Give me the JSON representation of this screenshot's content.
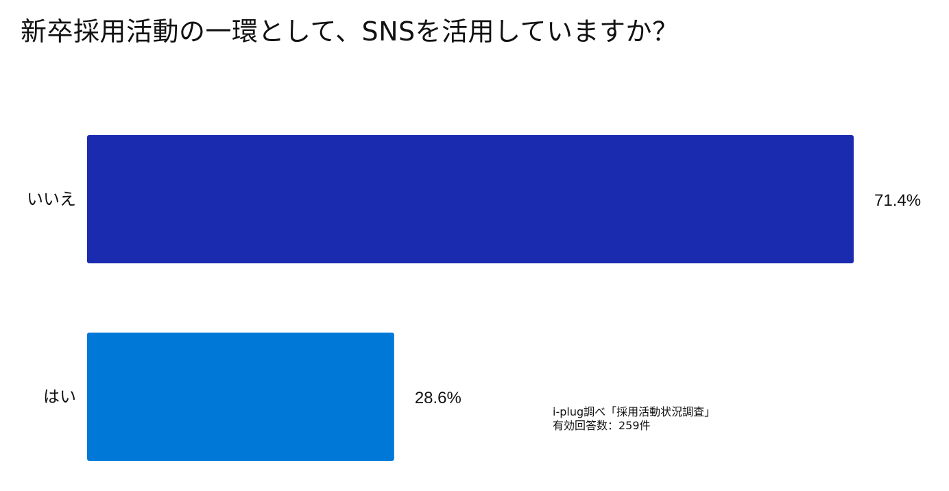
{
  "title": "新卒採用活動の一環として、SNSを活用していますか？",
  "source_note": {
    "line1": "i-plug調べ「採用活動状況調査」",
    "line2": "有効回答数：259件"
  },
  "chart_data": {
    "type": "bar",
    "orientation": "horizontal",
    "categories": [
      "いいえ",
      "はい"
    ],
    "values": [
      71.4,
      28.6
    ],
    "value_labels": [
      "71.4%",
      "28.6%"
    ],
    "colors": [
      "#1a2bb0",
      "#0078d7"
    ],
    "unit": "%",
    "xlim": [
      0,
      71.4
    ],
    "grid": false,
    "legend": "none"
  }
}
